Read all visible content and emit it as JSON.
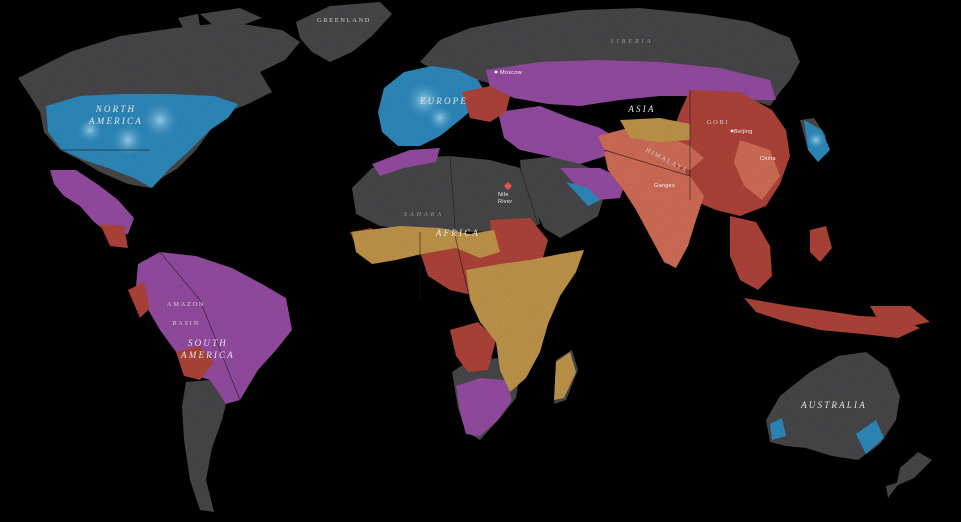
{
  "map": {
    "labels": {
      "greenland": "GREENLAND",
      "siberia": "SIBERIA",
      "north_america_1": "NORTH",
      "north_america_2": "AMERICA",
      "europe": "EUROPE",
      "moscow": "Moscow",
      "asia": "ASIA",
      "gobi": "GOBI",
      "beijing": "Beijing",
      "himalaya": "HIMALAYA",
      "china": "China",
      "ganges": "Ganges",
      "nile_1": "Nile",
      "nile_2": "River",
      "sahara": "SAHARA",
      "africa": "AFRICA",
      "amazon": "AMAZON",
      "basin": "BASIN",
      "south_america_1": "SOUTH",
      "south_america_2": "AMERICA",
      "australia": "AUSTRALIA"
    },
    "colors": {
      "ocean": "#000000",
      "land_gray": "#4a4a4c",
      "blue_region": "#2f8fc4",
      "purple_region": "#9b4fa8",
      "red_region": "#b5463c",
      "salmon_region": "#d9715a",
      "tan_region": "#c89b4d"
    }
  }
}
